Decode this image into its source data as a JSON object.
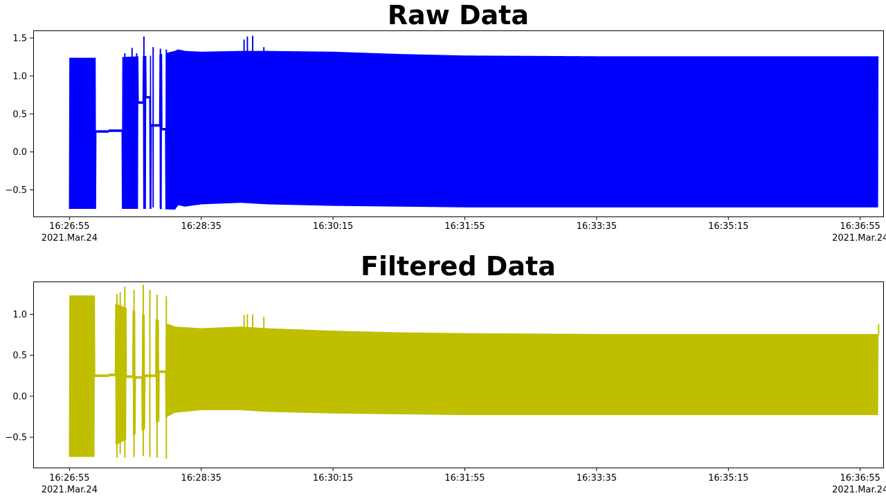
{
  "chart_data": [
    {
      "type": "line",
      "title": "Raw Data",
      "xlabel": "",
      "ylabel": "",
      "ylim": [
        -0.85,
        1.6
      ],
      "yticks": [
        -0.5,
        0.0,
        0.5,
        1.0,
        1.5
      ],
      "xlim": [
        -55,
        1235
      ],
      "xticks": [
        {
          "t": 0,
          "label": "16:26:55",
          "sub": "2021.Mar.24"
        },
        {
          "t": 200,
          "label": "16:28:35",
          "sub": ""
        },
        {
          "t": 400,
          "label": "16:30:15",
          "sub": ""
        },
        {
          "t": 600,
          "label": "16:31:55",
          "sub": ""
        },
        {
          "t": 800,
          "label": "16:33:35",
          "sub": ""
        },
        {
          "t": 1000,
          "label": "16:35:15",
          "sub": ""
        },
        {
          "t": 1200,
          "label": "16:36:55",
          "sub": "2021.Mar.24"
        }
      ],
      "color": "#0000ff",
      "series": [
        {
          "name": "",
          "color": "#0000ff",
          "band": [
            {
              "t": 0,
              "lo": -0.75,
              "hi": 1.24
            },
            {
              "t": 60,
              "lo": -0.75,
              "hi": 1.24
            },
            {
              "t": 130,
              "lo": -0.75,
              "hi": 1.27
            },
            {
              "t": 160,
              "lo": -0.76,
              "hi": 1.33
            },
            {
              "t": 165,
              "lo": -0.7,
              "hi": 1.35
            },
            {
              "t": 175,
              "lo": -0.72,
              "hi": 1.33
            },
            {
              "t": 200,
              "lo": -0.69,
              "hi": 1.32
            },
            {
              "t": 260,
              "lo": -0.67,
              "hi": 1.33
            },
            {
              "t": 300,
              "lo": -0.69,
              "hi": 1.33
            },
            {
              "t": 400,
              "lo": -0.71,
              "hi": 1.32
            },
            {
              "t": 500,
              "lo": -0.72,
              "hi": 1.29
            },
            {
              "t": 600,
              "lo": -0.73,
              "hi": 1.27
            },
            {
              "t": 800,
              "lo": -0.73,
              "hi": 1.26
            },
            {
              "t": 1000,
              "lo": -0.73,
              "hi": 1.26
            },
            {
              "t": 1227,
              "lo": -0.73,
              "hi": 1.26
            }
          ],
          "spikes": [
            {
              "t": 84,
              "lo": -0.75,
              "hi": 1.3
            },
            {
              "t": 88,
              "lo": -0.72,
              "hi": 1.25
            },
            {
              "t": 95,
              "lo": -0.75,
              "hi": 1.37
            },
            {
              "t": 102,
              "lo": -0.7,
              "hi": 1.3
            },
            {
              "t": 113,
              "lo": -0.74,
              "hi": 1.52
            },
            {
              "t": 127,
              "lo": -0.73,
              "hi": 1.38
            },
            {
              "t": 138,
              "lo": -0.74,
              "hi": 1.36
            },
            {
              "t": 147,
              "lo": -0.74,
              "hi": 1.35
            },
            {
              "t": 265,
              "lo": 1.2,
              "hi": 1.48
            },
            {
              "t": 270,
              "lo": 1.2,
              "hi": 1.52
            },
            {
              "t": 278,
              "lo": 1.2,
              "hi": 1.53
            },
            {
              "t": 295,
              "lo": 1.22,
              "hi": 1.38
            }
          ],
          "gaps": [
            [
              40,
              60,
              0.27
            ],
            [
              60,
              80,
              0.28
            ],
            [
              104,
              112,
              0.65
            ],
            [
              116,
              122,
              0.72
            ],
            [
              124,
              137,
              0.35
            ],
            [
              140,
              146,
              0.3
            ]
          ]
        }
      ]
    },
    {
      "type": "line",
      "title": "Filtered Data",
      "xlabel": "",
      "ylabel": "",
      "ylim": [
        -0.87,
        1.4
      ],
      "yticks": [
        -0.5,
        0.0,
        0.5,
        1.0
      ],
      "xlim": [
        -55,
        1235
      ],
      "xticks": [
        {
          "t": 0,
          "label": "16:26:55",
          "sub": "2021.Mar.24"
        },
        {
          "t": 200,
          "label": "16:28:35",
          "sub": ""
        },
        {
          "t": 400,
          "label": "16:30:15",
          "sub": ""
        },
        {
          "t": 600,
          "label": "16:31:55",
          "sub": ""
        },
        {
          "t": 800,
          "label": "16:33:35",
          "sub": ""
        },
        {
          "t": 1000,
          "label": "16:35:15",
          "sub": ""
        },
        {
          "t": 1200,
          "label": "16:36:55",
          "sub": "2021.Mar.24"
        }
      ],
      "color": "#bfbf00",
      "series": [
        {
          "name": "",
          "color": "#bfbf00",
          "band": [
            {
              "t": 0,
              "lo": -0.74,
              "hi": 1.23
            },
            {
              "t": 38,
              "lo": -0.74,
              "hi": 1.23
            },
            {
              "t": 160,
              "lo": -0.2,
              "hi": 0.85
            },
            {
              "t": 200,
              "lo": -0.17,
              "hi": 0.83
            },
            {
              "t": 260,
              "lo": -0.17,
              "hi": 0.85
            },
            {
              "t": 300,
              "lo": -0.19,
              "hi": 0.83
            },
            {
              "t": 400,
              "lo": -0.21,
              "hi": 0.8
            },
            {
              "t": 500,
              "lo": -0.22,
              "hi": 0.78
            },
            {
              "t": 600,
              "lo": -0.23,
              "hi": 0.77
            },
            {
              "t": 800,
              "lo": -0.23,
              "hi": 0.76
            },
            {
              "t": 1000,
              "lo": -0.23,
              "hi": 0.76
            },
            {
              "t": 1227,
              "lo": -0.23,
              "hi": 0.76
            }
          ],
          "spikes": [
            {
              "t": 72,
              "lo": -0.75,
              "hi": 1.25
            },
            {
              "t": 77,
              "lo": -0.7,
              "hi": 1.27
            },
            {
              "t": 84,
              "lo": -0.75,
              "hi": 1.34
            },
            {
              "t": 98,
              "lo": -0.74,
              "hi": 1.3
            },
            {
              "t": 112,
              "lo": -0.73,
              "hi": 1.36
            },
            {
              "t": 122,
              "lo": -0.74,
              "hi": 1.3
            },
            {
              "t": 133,
              "lo": -0.75,
              "hi": 1.24
            },
            {
              "t": 147,
              "lo": -0.76,
              "hi": 1.22
            },
            {
              "t": 265,
              "lo": 0.8,
              "hi": 0.99
            },
            {
              "t": 270,
              "lo": 0.8,
              "hi": 1.0
            },
            {
              "t": 278,
              "lo": 0.8,
              "hi": 1.0
            },
            {
              "t": 295,
              "lo": 0.8,
              "hi": 0.97
            },
            {
              "t": 1228,
              "lo": 0.75,
              "hi": 0.88
            }
          ],
          "gaps": [
            [
              38,
              60,
              0.25
            ],
            [
              60,
              70,
              0.26
            ],
            [
              86,
              96,
              0.24
            ],
            [
              100,
              110,
              0.23
            ],
            [
              114,
              131,
              0.25
            ],
            [
              136,
              146,
              0.3
            ]
          ]
        }
      ]
    }
  ]
}
